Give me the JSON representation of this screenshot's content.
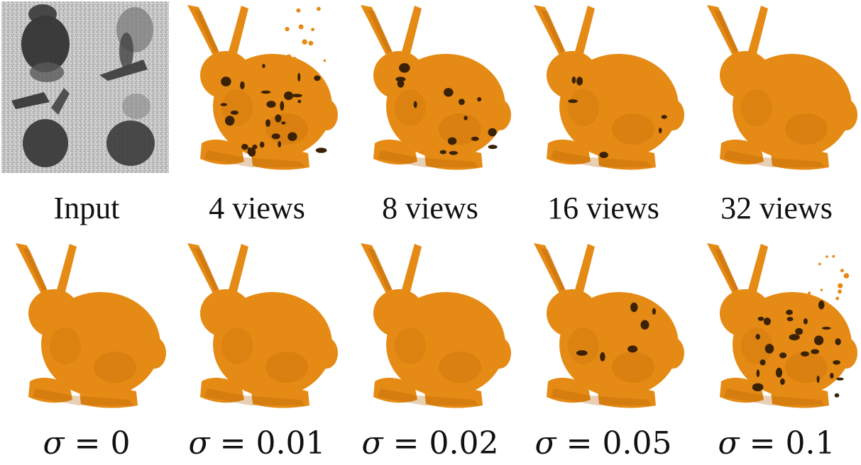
{
  "figure": {
    "row1": [
      {
        "label": "Input",
        "kind": "input"
      },
      {
        "label": "4 views",
        "kind": "bunny",
        "quality": "very-noisy"
      },
      {
        "label": "8 views",
        "kind": "bunny",
        "quality": "noisy"
      },
      {
        "label": "16 views",
        "kind": "bunny",
        "quality": "slightly-noisy"
      },
      {
        "label": "32 views",
        "kind": "bunny",
        "quality": "clean"
      }
    ],
    "row2": [
      {
        "symbol": "σ",
        "eq": "=",
        "value": "0",
        "quality": "clean"
      },
      {
        "symbol": "σ",
        "eq": "=",
        "value": "0.01",
        "quality": "clean"
      },
      {
        "symbol": "σ",
        "eq": "=",
        "value": "0.02",
        "quality": "clean"
      },
      {
        "symbol": "σ",
        "eq": "=",
        "value": "0.05",
        "quality": "slightly-noisy"
      },
      {
        "symbol": "σ",
        "eq": "=",
        "value": "0.1",
        "quality": "very-noisy"
      }
    ]
  },
  "colors": {
    "bunny_fill": "#e58a14",
    "bunny_dark": "#b35f05",
    "hole": "#3b2205",
    "noise_bg": "#bdbdbd",
    "depth_dark": "#2a2a2a"
  }
}
